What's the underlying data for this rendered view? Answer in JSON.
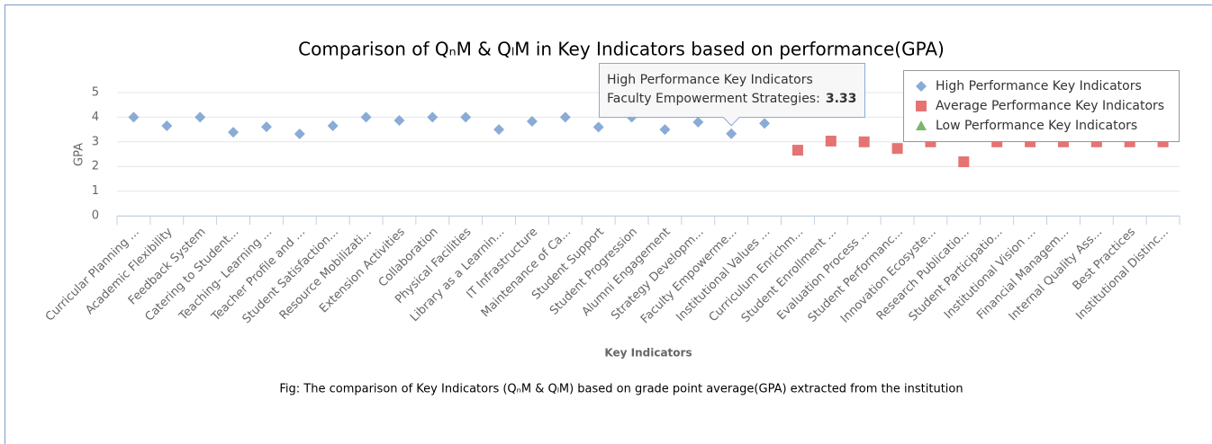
{
  "chart_data": {
    "type": "scatter",
    "title": "Comparison of QₙM & QₗM in Key Indicators based on performance(GPA)",
    "caption": "Fig: The comparison of Key Indicators (QₙM & QₗM) based on grade point average(GPA) extracted from the institution",
    "x_label": "Key Indicators",
    "y_label": "GPA",
    "categories": [
      "Curricular Planning ...",
      "Academic Flexibility",
      "Feedback System",
      "Catering to Student...",
      "Teaching- Learning ...",
      "Teacher Profile and ...",
      "Student Satisfaction...",
      "Resource Mobilizati...",
      "Extension Activities",
      "Collaboration",
      "Physical Facilities",
      "Library as a Learnin...",
      "IT Infrastructure",
      "Maintenance of Ca...",
      "Student Support",
      "Student Progression",
      "Alumni Engagement",
      "Strategy Developm...",
      "Faculty Empowerme...",
      "Institutional Values ...",
      "Curriculum Enrichm...",
      "Student Enrollment ...",
      "Evaluation Process ...",
      "Student Performanc...",
      "Innovation Ecosyste...",
      "Research Publicatio...",
      "Student Participatio...",
      "Institutional Vision ...",
      "Financial Managem...",
      "Internal Quality Ass...",
      "Best Practices",
      "Institutional Distinc..."
    ],
    "series": [
      {
        "name": "High Performance Key Indicators",
        "color": "#8aabd6",
        "marker": "diamond",
        "values": [
          4,
          3.65,
          4,
          3.39,
          3.61,
          3.32,
          3.65,
          4,
          3.87,
          4,
          4,
          3.5,
          3.83,
          4,
          3.6,
          4,
          3.5,
          3.8,
          3.33,
          3.75,
          null,
          null,
          null,
          null,
          null,
          null,
          null,
          null,
          null,
          null,
          null,
          null
        ]
      },
      {
        "name": "Average Performance Key Indicators",
        "color": "#e57373",
        "marker": "square",
        "values": [
          null,
          null,
          null,
          null,
          null,
          null,
          null,
          null,
          null,
          null,
          null,
          null,
          null,
          null,
          null,
          null,
          null,
          null,
          null,
          null,
          2.66,
          3.03,
          3,
          2.73,
          3,
          2.19,
          3,
          3,
          3,
          3,
          3,
          3
        ]
      },
      {
        "name": "Low Performance Key Indicators",
        "color": "#7cb56b",
        "marker": "triangle",
        "values": [
          null,
          null,
          null,
          null,
          null,
          null,
          null,
          null,
          null,
          null,
          null,
          null,
          null,
          null,
          null,
          null,
          null,
          null,
          null,
          null,
          null,
          null,
          null,
          null,
          null,
          null,
          null,
          null,
          null,
          null,
          null,
          null
        ]
      }
    ],
    "ylim": [
      0,
      5
    ],
    "yticks": [
      0,
      1,
      2,
      3,
      4,
      5
    ],
    "grid": true,
    "legend": "top-right",
    "tooltip": {
      "label": "Faculty Empowerment Strategies:"
    }
  }
}
